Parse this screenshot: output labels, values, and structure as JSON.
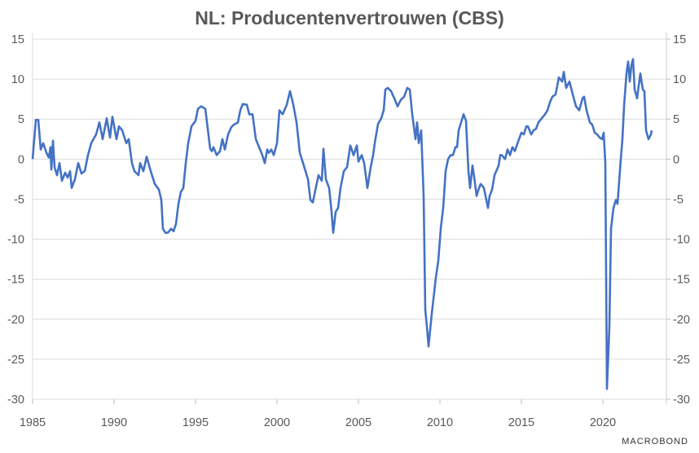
{
  "chart_data": {
    "type": "line",
    "title": "NL: Producentenvertrouwen (CBS)",
    "xlabel": "",
    "ylabel": "",
    "xlim": [
      1985,
      2023.9
    ],
    "ylim": [
      -30,
      15
    ],
    "x_ticks": [
      "1985",
      "1990",
      "1995",
      "2000",
      "2005",
      "2010",
      "2015",
      "2020"
    ],
    "y_ticks": [
      "15",
      "10",
      "5",
      "0",
      "-5",
      "-10",
      "-15",
      "-20",
      "-25",
      "-30"
    ],
    "y_axis_sides": [
      "left",
      "right"
    ],
    "grid": "horizontal",
    "line_color": "#4472c4",
    "series": [
      {
        "x": [
          1985.0,
          1985.2,
          1985.35,
          1985.5,
          1985.65,
          1985.85,
          1986.0,
          1986.1,
          1986.15,
          1986.25,
          1986.35,
          1986.5,
          1986.65,
          1986.8,
          1987.0,
          1987.15,
          1987.3,
          1987.4,
          1987.6,
          1987.8,
          1988.0,
          1988.2,
          1988.4,
          1988.6,
          1988.9,
          1989.1,
          1989.3,
          1989.55,
          1989.75,
          1989.9,
          1990.15,
          1990.3,
          1990.5,
          1990.75,
          1990.9,
          1991.1,
          1991.25,
          1991.5,
          1991.6,
          1991.8,
          1992.0,
          1992.25,
          1992.5,
          1992.75,
          1992.9,
          1993.0,
          1993.15,
          1993.3,
          1993.5,
          1993.65,
          1993.8,
          1993.95,
          1994.1,
          1994.25,
          1994.4,
          1994.55,
          1994.75,
          1995.0,
          1995.15,
          1995.35,
          1995.6,
          1995.9,
          1996.0,
          1996.1,
          1996.3,
          1996.5,
          1996.65,
          1996.8,
          1997.0,
          1997.2,
          1997.35,
          1997.6,
          1997.75,
          1997.9,
          1998.15,
          1998.3,
          1998.5,
          1998.7,
          1998.9,
          1999.1,
          1999.25,
          1999.4,
          1999.5,
          1999.65,
          1999.8,
          2000.0,
          2000.15,
          2000.35,
          2000.6,
          2000.8,
          2001.0,
          2001.2,
          2001.4,
          2001.6,
          2001.75,
          2001.9,
          2002.05,
          2002.2,
          2002.4,
          2002.55,
          2002.75,
          2002.85,
          2003.0,
          2003.2,
          2003.35,
          2003.45,
          2003.6,
          2003.75,
          2003.9,
          2004.1,
          2004.3,
          2004.5,
          2004.7,
          2004.9,
          2005.0,
          2005.2,
          2005.35,
          2005.55,
          2005.75,
          2005.9,
          2006.0,
          2006.2,
          2006.4,
          2006.55,
          2006.65,
          2006.8,
          2007.0,
          2007.2,
          2007.4,
          2007.6,
          2007.8,
          2008.0,
          2008.15,
          2008.3,
          2008.5,
          2008.6,
          2008.7,
          2008.85,
          2009.0,
          2009.1,
          2009.2,
          2009.3,
          2009.5,
          2009.75,
          2009.9,
          2010.05,
          2010.2,
          2010.35,
          2010.5,
          2010.65,
          2010.8,
          2010.95,
          2011.05,
          2011.15,
          2011.3,
          2011.45,
          2011.6,
          2011.75,
          2011.85,
          2012.0,
          2012.1,
          2012.25,
          2012.4,
          2012.5,
          2012.7,
          2012.85,
          2012.95,
          2013.05,
          2013.2,
          2013.35,
          2013.5,
          2013.6,
          2013.7,
          2013.8,
          2014.0,
          2014.15,
          2014.3,
          2014.45,
          2014.6,
          2014.8,
          2015.0,
          2015.15,
          2015.3,
          2015.4,
          2015.6,
          2015.75,
          2015.9,
          2016.05,
          2016.25,
          2016.45,
          2016.6,
          2016.75,
          2016.9,
          2017.1,
          2017.3,
          2017.5,
          2017.6,
          2017.75,
          2017.95,
          2018.15,
          2018.35,
          2018.55,
          2018.75,
          2018.85,
          2019.0,
          2019.2,
          2019.35,
          2019.5,
          2019.65,
          2019.8,
          2019.95,
          2020.05,
          2020.15,
          2020.25,
          2020.4,
          2020.5,
          2020.65,
          2020.8,
          2020.9,
          2021.1,
          2021.2,
          2021.3,
          2021.45,
          2021.55,
          2021.65,
          2021.75,
          2021.85,
          2021.95,
          2022.1,
          2022.2,
          2022.3,
          2022.45,
          2022.55,
          2022.65,
          2022.8,
          2022.95,
          2023.0
        ],
        "y": [
          0.0,
          4.9,
          4.9,
          1.2,
          2.0,
          0.8,
          0.2,
          1.5,
          -1.3,
          2.3,
          -1.0,
          -2.0,
          -0.5,
          -2.7,
          -1.7,
          -2.3,
          -1.5,
          -3.6,
          -2.5,
          -0.5,
          -1.8,
          -1.5,
          0.5,
          2.0,
          3.1,
          4.6,
          2.5,
          5.1,
          2.7,
          5.3,
          2.5,
          4.1,
          3.6,
          2.0,
          2.5,
          -0.5,
          -1.5,
          -2.0,
          -0.5,
          -1.5,
          0.3,
          -1.5,
          -3.1,
          -3.8,
          -5.1,
          -8.7,
          -9.2,
          -9.2,
          -8.7,
          -9.0,
          -8.1,
          -5.6,
          -4.1,
          -3.6,
          -0.5,
          2.0,
          4.1,
          4.8,
          6.3,
          6.6,
          6.3,
          1.3,
          1.0,
          1.5,
          0.5,
          1.0,
          2.5,
          1.2,
          3.1,
          4.0,
          4.3,
          4.6,
          6.1,
          6.9,
          6.8,
          5.6,
          5.6,
          2.5,
          1.5,
          0.5,
          -0.5,
          1.2,
          0.8,
          1.2,
          0.5,
          2.0,
          6.1,
          5.6,
          6.8,
          8.5,
          6.8,
          4.6,
          0.8,
          -0.5,
          -1.5,
          -2.5,
          -5.1,
          -5.4,
          -3.4,
          -2.0,
          -2.7,
          1.3,
          -2.5,
          -3.6,
          -6.6,
          -9.2,
          -6.6,
          -6.1,
          -3.6,
          -1.5,
          -1.0,
          1.7,
          0.5,
          1.7,
          -0.3,
          0.5,
          -0.5,
          -3.6,
          -1.0,
          0.5,
          2.0,
          4.4,
          5.1,
          6.1,
          8.7,
          8.9,
          8.5,
          7.6,
          6.6,
          7.4,
          7.8,
          8.9,
          8.7,
          5.6,
          2.5,
          4.6,
          2.0,
          3.6,
          -4.6,
          -18.8,
          -20.9,
          -23.4,
          -19.3,
          -14.8,
          -12.7,
          -8.7,
          -6.1,
          -1.5,
          0.0,
          0.5,
          0.5,
          1.5,
          1.5,
          3.6,
          4.6,
          5.6,
          4.8,
          -1.5,
          -3.6,
          -0.8,
          -2.2,
          -4.6,
          -3.6,
          -3.1,
          -3.6,
          -5.1,
          -6.1,
          -4.6,
          -3.8,
          -2.0,
          -1.3,
          -0.8,
          0.5,
          0.5,
          0.0,
          1.2,
          0.5,
          1.5,
          1.0,
          2.2,
          3.3,
          3.1,
          4.1,
          4.1,
          3.1,
          3.6,
          3.8,
          4.6,
          5.1,
          5.6,
          6.1,
          7.1,
          7.8,
          8.1,
          10.2,
          9.7,
          10.9,
          8.9,
          9.7,
          8.1,
          6.6,
          6.1,
          7.6,
          7.8,
          6.1,
          4.6,
          4.3,
          3.3,
          3.1,
          2.7,
          2.5,
          3.3,
          -0.5,
          -28.7,
          -20.9,
          -8.7,
          -6.1,
          -5.1,
          -5.6,
          0.0,
          2.5,
          6.6,
          10.7,
          12.2,
          9.7,
          11.7,
          12.5,
          8.7,
          7.6,
          9.2,
          10.7,
          8.7,
          8.5,
          3.6,
          2.5,
          3.1,
          3.6
        ]
      }
    ]
  },
  "branding": {
    "logo_text": "MACROBOND"
  }
}
